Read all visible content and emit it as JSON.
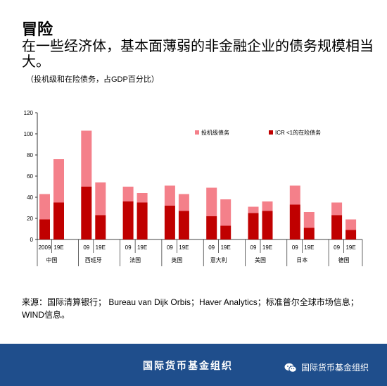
{
  "header": {
    "title": "冒险",
    "subtitle": "在一些经济体，基本面薄弱的非金融企业的债务规模相当大。",
    "note": "（投机级和在险债务，占GDP百分比）"
  },
  "chart_data": {
    "type": "bar",
    "stacked": true,
    "ylim": [
      0,
      120
    ],
    "yticks": [
      0,
      20,
      40,
      60,
      80,
      100,
      120
    ],
    "grid": false,
    "legend_position": "top-right",
    "groups": [
      {
        "label": "中国",
        "bars": [
          "2009",
          "19E"
        ]
      },
      {
        "label": "西班牙",
        "bars": [
          "09",
          "19E"
        ]
      },
      {
        "label": "法国",
        "bars": [
          "09",
          "19E"
        ]
      },
      {
        "label": "英国",
        "bars": [
          "09",
          "19E"
        ]
      },
      {
        "label": "意大利",
        "bars": [
          "09",
          "19E"
        ]
      },
      {
        "label": "美国",
        "bars": [
          "09",
          "19E"
        ]
      },
      {
        "label": "日本",
        "bars": [
          "09",
          "19E"
        ]
      },
      {
        "label": "德国",
        "bars": [
          "09",
          "19E"
        ]
      }
    ],
    "series": [
      {
        "name": "ICR <1的在险债务",
        "color": "#c00000",
        "values": [
          19,
          35,
          50,
          23,
          36,
          35,
          32,
          27,
          22,
          13,
          25,
          27,
          33,
          11,
          23,
          9
        ]
      },
      {
        "name": "投机级债务",
        "color": "#f4808a",
        "values": [
          24,
          41,
          53,
          31,
          14,
          9,
          19,
          16,
          27,
          25,
          6,
          9,
          18,
          15,
          12,
          10
        ]
      }
    ]
  },
  "source": "来源：国际清算银行； Bureau van Dijk Orbis；Haver Analytics；标准普尔全球市场信息；WIND信息。",
  "footer": {
    "center": "国际货币基金组织",
    "right": "国际货币基金组织"
  }
}
